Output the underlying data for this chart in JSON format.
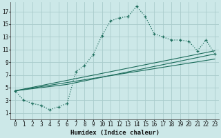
{
  "xlabel": "Humidex (Indice chaleur)",
  "bg_color": "#cce8e8",
  "grid_color": "#aacccc",
  "line_color": "#1a6b5a",
  "xlim": [
    -0.5,
    23.5
  ],
  "ylim": [
    0.0,
    18.5
  ],
  "xticks": [
    0,
    1,
    2,
    3,
    4,
    5,
    6,
    7,
    8,
    9,
    10,
    11,
    12,
    13,
    14,
    15,
    16,
    17,
    18,
    19,
    20,
    21,
    22,
    23
  ],
  "yticks": [
    1,
    3,
    5,
    7,
    9,
    11,
    13,
    15,
    17
  ],
  "line1_x": [
    0,
    1,
    2,
    3,
    4,
    5,
    6,
    7,
    8,
    9,
    10,
    11,
    12,
    13,
    14,
    15,
    16,
    17,
    18,
    19,
    20,
    21,
    22,
    23
  ],
  "line1_y": [
    4.5,
    3.0,
    2.5,
    2.2,
    1.5,
    2.0,
    2.5,
    7.5,
    8.5,
    10.2,
    13.2,
    15.5,
    16.0,
    16.2,
    17.8,
    16.2,
    13.5,
    13.0,
    12.5,
    12.5,
    12.3,
    10.8,
    12.5,
    10.3
  ],
  "line2_x": [
    0,
    23
  ],
  "line2_y": [
    4.5,
    10.8
  ],
  "line3_x": [
    0,
    23
  ],
  "line3_y": [
    4.5,
    9.5
  ],
  "line4_x": [
    0,
    6,
    23
  ],
  "line4_y": [
    4.5,
    5.5,
    10.3
  ]
}
